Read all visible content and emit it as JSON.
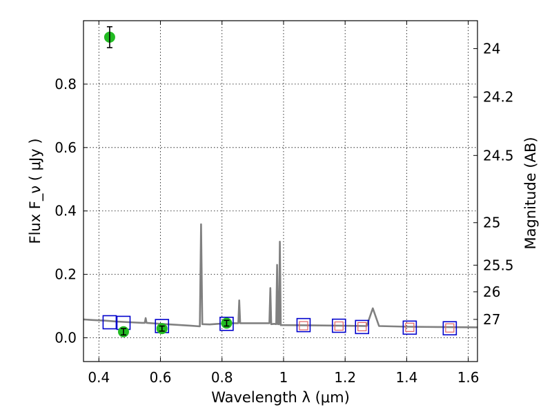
{
  "chart_data": {
    "type": "scatter",
    "xlabel": "Wavelength  λ (μm)",
    "ylabel": "Flux  F_ν  ( μJy )",
    "y2label": "Magnitude (AB)",
    "xlim": [
      0.35,
      1.63
    ],
    "ylim": [
      -0.075,
      1.0
    ],
    "grid": true,
    "x_ticks": [
      0.4,
      0.6,
      0.8,
      1.0,
      1.2,
      1.4,
      1.6
    ],
    "x_tick_labels": [
      "0.4",
      "0.6",
      "0.8",
      "1",
      "1.2",
      "1.4",
      "1.6"
    ],
    "y_ticks": [
      0.0,
      0.2,
      0.4,
      0.6,
      0.8
    ],
    "y_tick_labels": [
      "0.0",
      "0.2",
      "0.4",
      "0.6",
      "0.8"
    ],
    "y2_ticks": [
      {
        "label": "24",
        "flux": 0.912
      },
      {
        "label": "24.2",
        "flux": 0.759
      },
      {
        "label": "24.5",
        "flux": 0.575
      },
      {
        "label": "25",
        "flux": 0.363
      },
      {
        "label": "25.5",
        "flux": 0.229
      },
      {
        "label": "26",
        "flux": 0.145
      },
      {
        "label": "27",
        "flux": 0.058
      }
    ],
    "series": [
      {
        "type": "line",
        "color": "#808080",
        "points": [
          [
            0.35,
            0.058
          ],
          [
            0.38,
            0.056
          ],
          [
            0.42,
            0.054
          ],
          [
            0.46,
            0.051
          ],
          [
            0.5,
            0.049
          ],
          [
            0.54,
            0.047
          ],
          [
            0.549,
            0.047
          ],
          [
            0.552,
            0.062
          ],
          [
            0.555,
            0.047
          ],
          [
            0.6,
            0.044
          ],
          [
            0.65,
            0.041
          ],
          [
            0.7,
            0.038
          ],
          [
            0.728,
            0.036
          ],
          [
            0.732,
            0.358
          ],
          [
            0.736,
            0.043
          ],
          [
            0.76,
            0.042
          ],
          [
            0.8,
            0.045
          ],
          [
            0.84,
            0.046
          ],
          [
            0.853,
            0.046
          ],
          [
            0.856,
            0.118
          ],
          [
            0.859,
            0.046
          ],
          [
            0.9,
            0.046
          ],
          [
            0.954,
            0.046
          ],
          [
            0.957,
            0.157
          ],
          [
            0.96,
            0.043
          ],
          [
            0.97,
            0.044
          ],
          [
            0.976,
            0.043
          ],
          [
            0.979,
            0.23
          ],
          [
            0.982,
            0.043
          ],
          [
            0.985,
            0.043
          ],
          [
            0.988,
            0.303
          ],
          [
            0.991,
            0.04
          ],
          [
            1.0,
            0.04
          ],
          [
            1.1,
            0.039
          ],
          [
            1.2,
            0.038
          ],
          [
            1.27,
            0.037
          ],
          [
            1.29,
            0.093
          ],
          [
            1.31,
            0.037
          ],
          [
            1.4,
            0.035
          ],
          [
            1.5,
            0.034
          ],
          [
            1.63,
            0.033
          ]
        ]
      },
      {
        "type": "markers",
        "marker": "square",
        "color": "#0000cc",
        "points": [
          [
            0.435,
            0.049
          ],
          [
            0.48,
            0.047
          ],
          [
            0.605,
            0.037
          ],
          [
            0.815,
            0.044
          ],
          [
            1.065,
            0.04
          ],
          [
            1.18,
            0.038
          ],
          [
            1.255,
            0.034
          ],
          [
            1.41,
            0.032
          ],
          [
            1.54,
            0.03
          ]
        ]
      },
      {
        "type": "markers",
        "marker": "small-square",
        "color": "#e06060",
        "points": [
          [
            1.065,
            0.038
          ],
          [
            1.18,
            0.037
          ],
          [
            1.255,
            0.035
          ],
          [
            1.41,
            0.033
          ],
          [
            1.54,
            0.031
          ]
        ]
      },
      {
        "type": "errorbar",
        "marker": "circle",
        "color": "#22bb22",
        "points": [
          {
            "x": 0.435,
            "y": 0.948,
            "err": 0.033
          },
          {
            "x": 0.48,
            "y": 0.019,
            "err": 0.01
          },
          {
            "x": 0.605,
            "y": 0.029,
            "err": 0.008
          },
          {
            "x": 0.815,
            "y": 0.046,
            "err": 0.009
          }
        ]
      }
    ]
  }
}
